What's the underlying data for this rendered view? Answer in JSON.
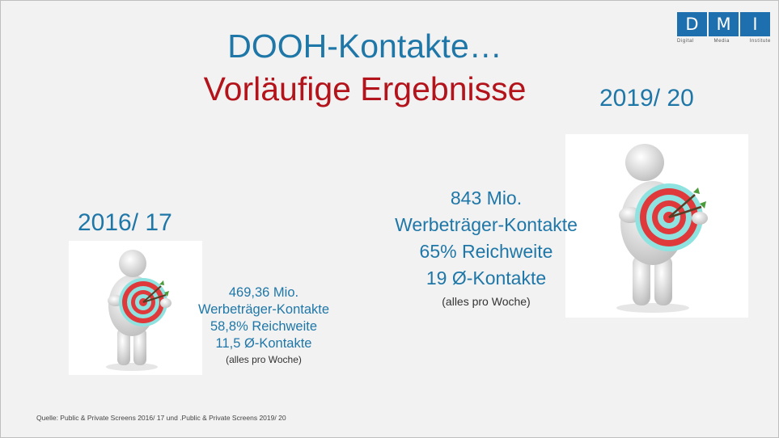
{
  "logo": {
    "letters": [
      "D",
      "M",
      "I"
    ],
    "words": [
      "Digital",
      "Media",
      "Institute"
    ],
    "color": "#1d6fae"
  },
  "title": {
    "line1": "DOOH-Kontakte…",
    "line2": "Vorläufige Ergebnisse"
  },
  "left": {
    "year": "2016/ 17",
    "stats": [
      "469,36 Mio.",
      "Werbeträger-Kontakte",
      "58,8% Reichweite",
      "11,5 Ø-Kontakte"
    ],
    "note": "(alles pro Woche)"
  },
  "right": {
    "year": "2019/ 20",
    "stats": [
      "843 Mio.",
      "Werbeträger-Kontakte",
      "65% Reichweite",
      "19 Ø-Kontakte"
    ],
    "note": "(alles pro Woche)"
  },
  "source": "Quelle: Public & Private Screens 2016/ 17 und .Public & Private Screens 2019/ 20",
  "colors": {
    "title_blue": "#1f77a8",
    "title_red": "#b3141b",
    "target_red": "#e0393b",
    "target_cyan": "#8ee3e0"
  },
  "images": {
    "left": "figure-holding-target-icon",
    "right": "figure-holding-target-icon"
  }
}
